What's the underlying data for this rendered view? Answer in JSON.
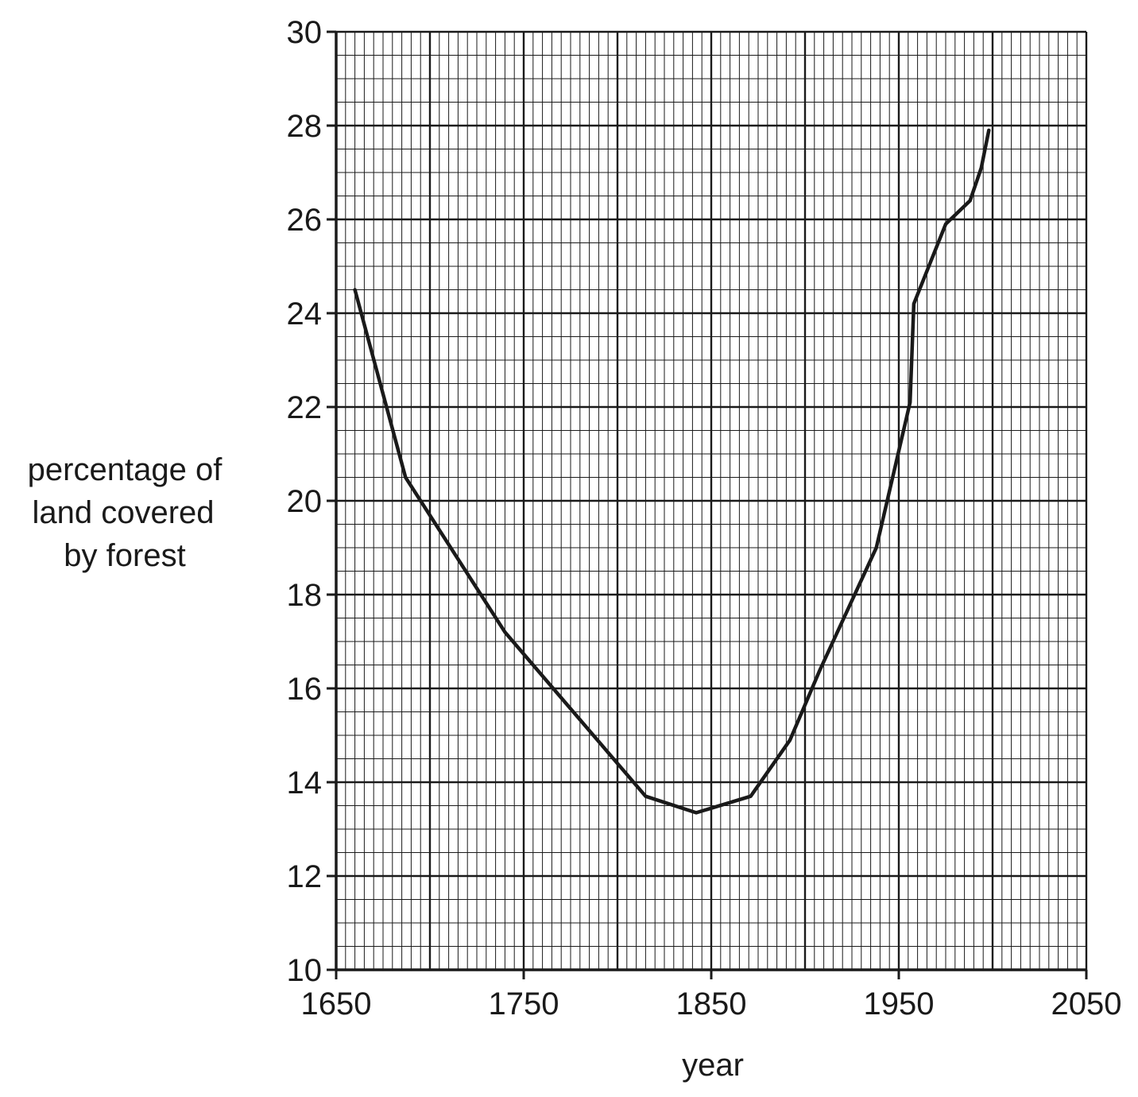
{
  "chart_data": {
    "type": "line",
    "title": "",
    "xlabel": "year",
    "ylabel_lines": [
      "percentage of",
      "land covered",
      "by forest"
    ],
    "xlim": [
      1650,
      2050
    ],
    "ylim": [
      10,
      30
    ],
    "x_ticks": [
      1650,
      1750,
      1850,
      1950,
      2050
    ],
    "y_ticks": [
      10,
      12,
      14,
      16,
      18,
      20,
      22,
      24,
      26,
      28,
      30
    ],
    "x_tick_labels": [
      "1650",
      "1750",
      "1850",
      "1950",
      "2050"
    ],
    "y_tick_labels": [
      "10",
      "12",
      "14",
      "16",
      "18",
      "20",
      "22",
      "24",
      "26",
      "28",
      "30"
    ],
    "x_minor_step": 5,
    "x_major_step": 50,
    "y_minor_step": 0.5,
    "y_major_step": 2,
    "grid": true,
    "legend": "none",
    "line_color": "#1a1a1a",
    "grid_color": "#1a1a1a",
    "series": [
      {
        "x": [
          1660,
          1687,
          1740,
          1815,
          1842,
          1871,
          1892,
          1908,
          1938,
          1956,
          1958,
          1975,
          1988,
          1994,
          1998
        ],
        "y": [
          24.5,
          20.5,
          17.2,
          13.7,
          13.35,
          13.7,
          14.9,
          16.4,
          19.0,
          22.1,
          24.2,
          25.9,
          26.4,
          27.1,
          27.9
        ]
      }
    ]
  }
}
